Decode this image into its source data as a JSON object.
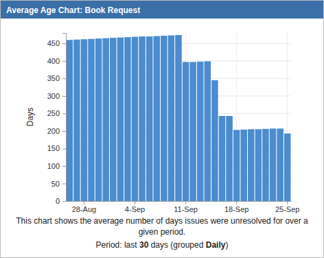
{
  "chart_data": {
    "type": "bar",
    "title": "Average Age Chart: Book Request",
    "y_label": "Days",
    "categories": [
      null,
      null,
      "28-Aug",
      null,
      null,
      null,
      null,
      null,
      null,
      "4-Sep",
      null,
      null,
      null,
      null,
      null,
      null,
      "11-Sep",
      null,
      null,
      null,
      null,
      null,
      null,
      "18-Sep",
      null,
      null,
      null,
      null,
      null,
      null,
      "25-Sep"
    ],
    "values": [
      460,
      461,
      462,
      463,
      464,
      465,
      466,
      467,
      468,
      469,
      470,
      470,
      471,
      472,
      473,
      474,
      397,
      397,
      398,
      399,
      345,
      243,
      243,
      203,
      204,
      205,
      205,
      206,
      207,
      207,
      193
    ],
    "color": "#4a8ccf",
    "ylim": [
      0,
      480
    ],
    "yticks": [
      0,
      50,
      100,
      150,
      200,
      250,
      300,
      350,
      400,
      450
    ],
    "grid": true,
    "description": [
      "This chart shows the average number of days issues were unresolved for over a",
      "given period."
    ],
    "period": [
      "Period: last ",
      "30",
      " days (grouped ",
      "Daily",
      ")"
    ]
  }
}
